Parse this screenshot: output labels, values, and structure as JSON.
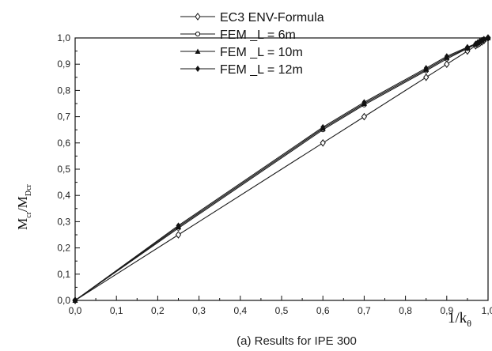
{
  "chart_data": {
    "type": "line",
    "title": "",
    "caption": "(a) Results for IPE 300",
    "xlabel": {
      "main": "1/k",
      "sub": "θ"
    },
    "ylabel": {
      "m1": "M",
      "s1": "cr",
      "sep": "/",
      "m2": "M",
      "s2": "Dcr"
    },
    "xlim": [
      0.0,
      1.0
    ],
    "ylim": [
      0.0,
      1.0
    ],
    "xticks": [
      "0,0",
      "0,1",
      "0,2",
      "0,3",
      "0,4",
      "0,5",
      "0,6",
      "0,7",
      "0,8",
      "0,9",
      "1,0"
    ],
    "yticks": [
      "0,0",
      "0,1",
      "0,2",
      "0,3",
      "0,4",
      "0,5",
      "0,6",
      "0,7",
      "0,8",
      "0,9",
      "1,0"
    ],
    "grid": false,
    "legend_position": "top-center",
    "series": [
      {
        "name": "EC3 ENV-Formula",
        "marker": "diamond",
        "x": [
          0.0,
          0.25,
          0.6,
          0.7,
          0.85,
          0.9,
          0.95,
          0.97,
          0.975,
          0.98,
          0.985,
          0.99,
          1.0
        ],
        "y": [
          0.0,
          0.25,
          0.6,
          0.7,
          0.85,
          0.9,
          0.95,
          0.97,
          0.975,
          0.98,
          0.985,
          0.99,
          1.0
        ]
      },
      {
        "name": "FEM _L = 6m",
        "marker": "circle",
        "x": [
          0.0,
          0.25,
          0.6,
          0.7,
          0.85,
          0.9,
          0.95,
          0.97,
          0.975,
          0.98,
          0.985,
          0.99,
          1.0
        ],
        "y": [
          0.0,
          0.275,
          0.65,
          0.745,
          0.875,
          0.92,
          0.96,
          0.975,
          0.98,
          0.985,
          0.99,
          0.995,
          1.0
        ]
      },
      {
        "name": "FEM _L = 10m",
        "marker": "triangle",
        "x": [
          0.0,
          0.25,
          0.6,
          0.7,
          0.85,
          0.9,
          0.95,
          0.97,
          0.975,
          0.98,
          0.985,
          0.99,
          1.0
        ],
        "y": [
          0.0,
          0.28,
          0.655,
          0.75,
          0.88,
          0.925,
          0.962,
          0.977,
          0.982,
          0.987,
          0.991,
          0.995,
          1.0
        ]
      },
      {
        "name": "FEM _L = 12m",
        "marker": "diamond-filled",
        "x": [
          0.0,
          0.25,
          0.6,
          0.7,
          0.85,
          0.9,
          0.95,
          0.97,
          0.975,
          0.98,
          0.985,
          0.99,
          1.0
        ],
        "y": [
          0.0,
          0.285,
          0.66,
          0.755,
          0.885,
          0.93,
          0.965,
          0.978,
          0.983,
          0.988,
          0.992,
          0.996,
          1.0
        ]
      }
    ]
  }
}
